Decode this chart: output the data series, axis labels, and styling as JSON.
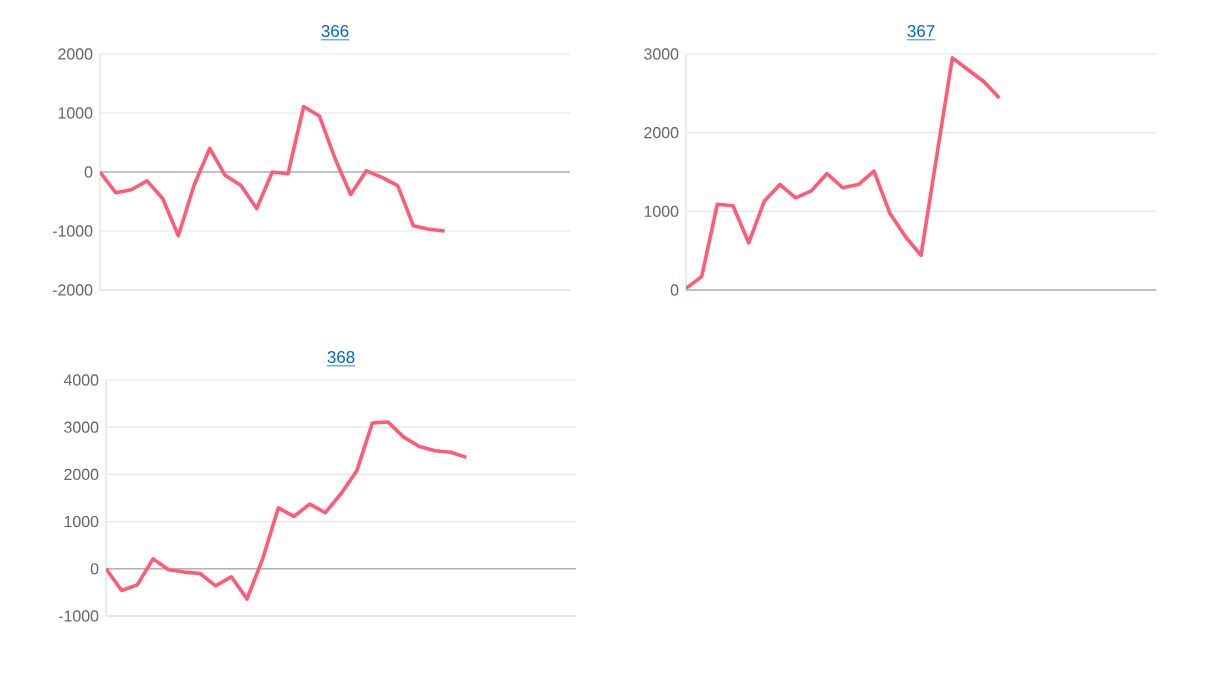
{
  "chart_data": [
    {
      "type": "line",
      "title": "366",
      "categories": [
        null,
        null,
        null,
        null,
        null,
        null,
        null,
        null,
        null,
        null,
        null,
        null,
        null,
        null,
        null,
        null,
        null,
        null,
        null,
        null,
        null,
        null,
        null,
        null,
        null,
        null,
        null,
        null,
        null,
        null,
        null
      ],
      "values": [
        0,
        -350,
        -300,
        -150,
        -450,
        -1080,
        -230,
        400,
        -60,
        -230,
        -620,
        0,
        -30,
        1110,
        950,
        230,
        -380,
        20,
        -90,
        -230,
        -910,
        -970,
        -1000,
        null,
        null,
        null,
        null,
        null,
        null,
        null,
        null
      ],
      "color": "#ff5a76",
      "ylim": [
        -2000,
        2000
      ],
      "yticks": [
        -2000,
        -1000,
        0,
        1000,
        2000
      ],
      "grid": "y",
      "tick_labels": "y"
    },
    {
      "type": "line",
      "title": "367",
      "categories": [
        null,
        null,
        null,
        null,
        null,
        null,
        null,
        null,
        null,
        null,
        null,
        null,
        null,
        null,
        null,
        null,
        null,
        null,
        null,
        null,
        null,
        null,
        null,
        null,
        null,
        null,
        null,
        null,
        null,
        null,
        null
      ],
      "values": [
        20,
        170,
        1090,
        1070,
        600,
        1130,
        1340,
        1170,
        1260,
        1480,
        1300,
        1340,
        1510,
        980,
        680,
        440,
        1700,
        2950,
        2800,
        2650,
        2440,
        null,
        null,
        null,
        null,
        null,
        null,
        null,
        null,
        null,
        null
      ],
      "color": "#ff5a76",
      "ylim": [
        0,
        3000
      ],
      "yticks": [
        0,
        1000,
        2000,
        3000
      ],
      "grid": "y",
      "tick_labels": "y"
    },
    {
      "type": "line",
      "title": "368",
      "categories": [
        null,
        null,
        null,
        null,
        null,
        null,
        null,
        null,
        null,
        null,
        null,
        null,
        null,
        null,
        null,
        null,
        null,
        null,
        null,
        null,
        null,
        null,
        null,
        null,
        null,
        null,
        null,
        null,
        null,
        null,
        null
      ],
      "values": [
        0,
        -460,
        -340,
        210,
        -20,
        -70,
        -100,
        -360,
        -170,
        -640,
        210,
        1290,
        1110,
        1370,
        1190,
        1590,
        2070,
        3090,
        3110,
        2790,
        2590,
        2500,
        2470,
        2360,
        null,
        null,
        null,
        null,
        null,
        null,
        null
      ],
      "color": "#ff5a76",
      "ylim": [
        -1000,
        4000
      ],
      "yticks": [
        -1000,
        0,
        1000,
        2000,
        3000,
        4000
      ],
      "grid": "y",
      "tick_labels": "y"
    }
  ]
}
